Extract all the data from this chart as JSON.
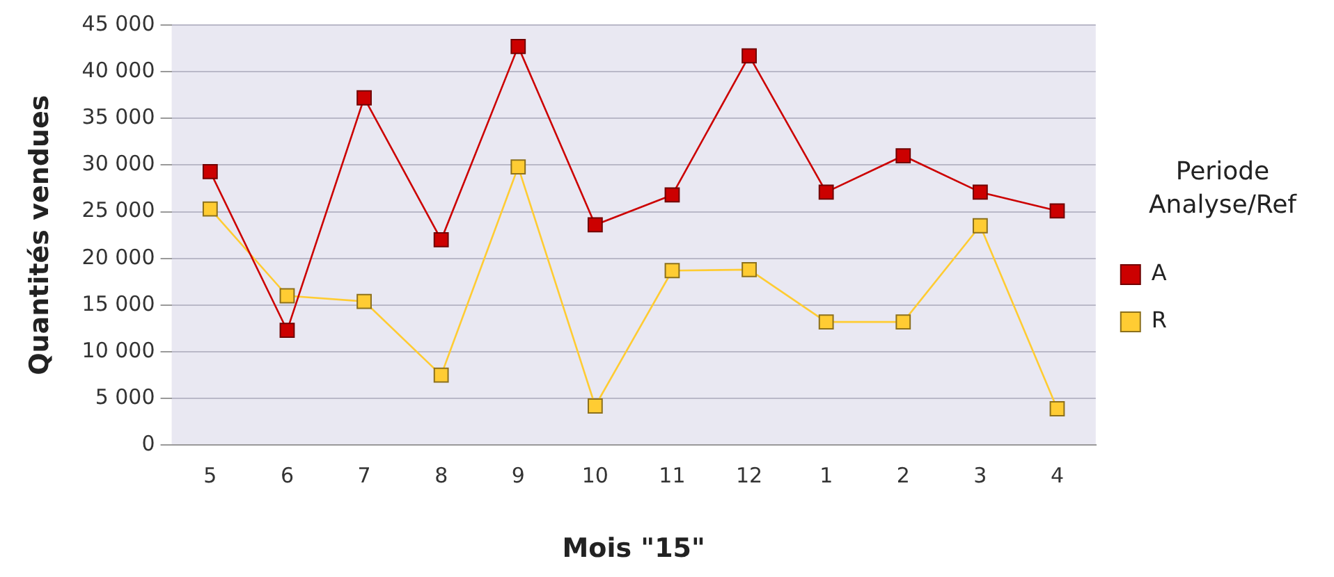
{
  "chart_data": {
    "type": "line",
    "xlabel": "Mois \"15\"",
    "ylabel": "Quantités vendues",
    "legend_title": "Periode Analyse/Ref",
    "categories": [
      "5",
      "6",
      "7",
      "8",
      "9",
      "10",
      "11",
      "12",
      "1",
      "2",
      "3",
      "4"
    ],
    "series": [
      {
        "name": "A",
        "color": "#cc0000",
        "values": [
          29300,
          12300,
          37200,
          22000,
          42700,
          23600,
          26800,
          41700,
          27100,
          31000,
          27100,
          25100
        ]
      },
      {
        "name": "R",
        "color": "#ffcc33",
        "values": [
          25300,
          16000,
          15400,
          7500,
          29800,
          4200,
          18700,
          18800,
          13200,
          13200,
          23500,
          3900
        ]
      }
    ],
    "ylim": [
      0,
      45000
    ],
    "yticks": [
      0,
      {
        "value": 5000,
        "label": "5 000"
      },
      {
        "value": 10000,
        "label": "10 000"
      },
      {
        "value": 15000,
        "label": "15 000"
      },
      {
        "value": 20000,
        "label": "20 000"
      },
      {
        "value": 25000,
        "label": "25 000"
      },
      {
        "value": 30000,
        "label": "30 000"
      },
      {
        "value": 35000,
        "label": "35 000"
      },
      {
        "value": 40000,
        "label": "40 000"
      },
      {
        "value": 45000,
        "label": "45 000"
      }
    ],
    "grid": "y",
    "legend": "right",
    "marker": "square",
    "line_style": "solid"
  }
}
